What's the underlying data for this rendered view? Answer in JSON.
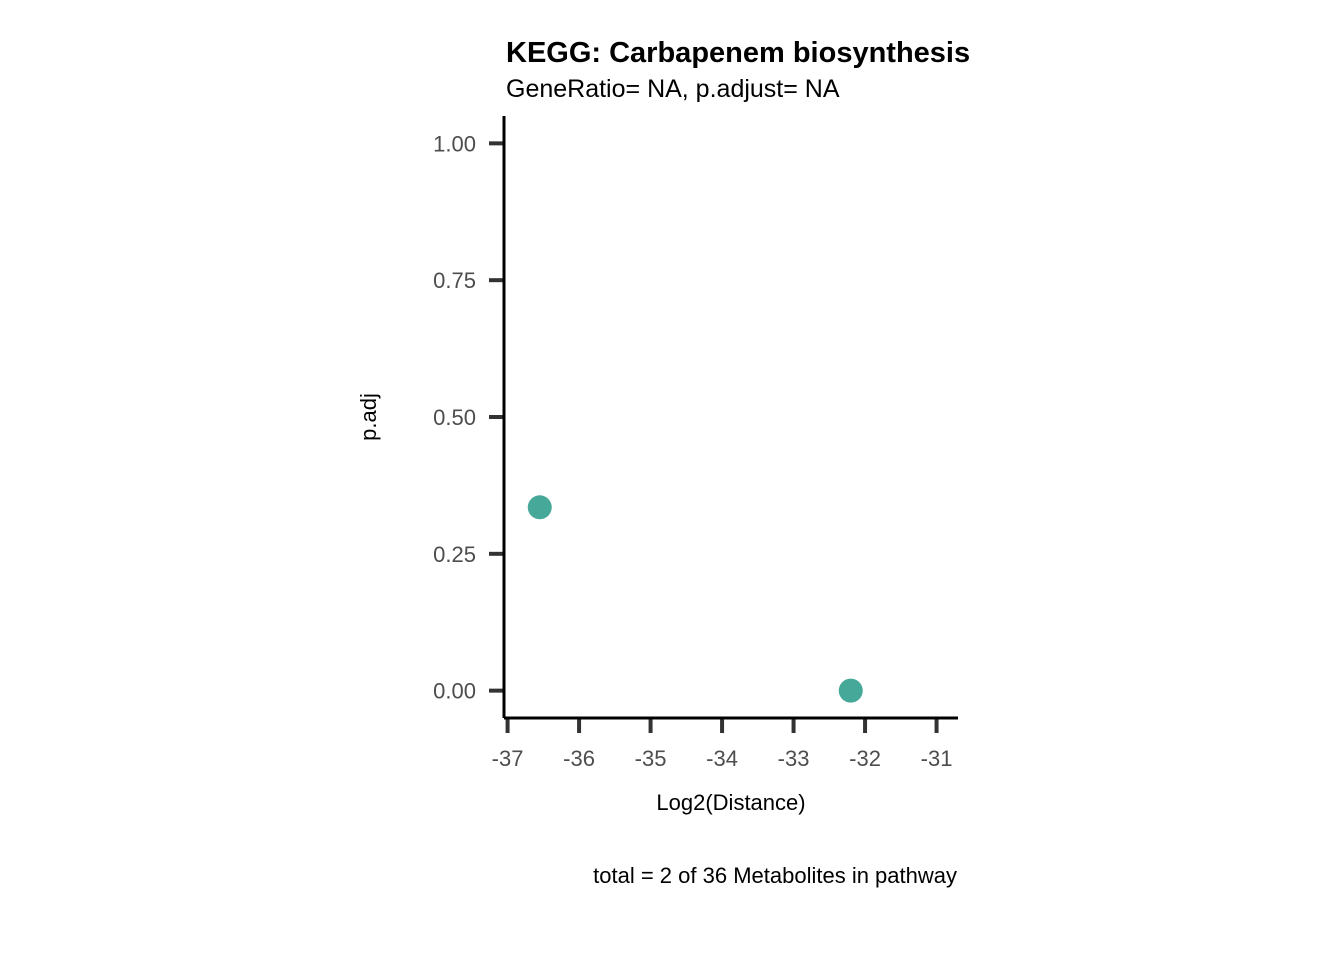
{
  "chart_data": {
    "type": "scatter",
    "title": "KEGG: Carbapenem biosynthesis",
    "subtitle": "GeneRatio= NA, p.adjust= NA",
    "xlabel": "Log2(Distance)",
    "ylabel": "p.adj",
    "caption": "total = 2 of 36 Metabolites in pathway",
    "xlim": [
      -37.05,
      -30.7
    ],
    "ylim": [
      -0.05,
      1.05
    ],
    "x_ticks": [
      -37,
      -36,
      -35,
      -34,
      -33,
      -32,
      -31
    ],
    "x_tick_labels": [
      "-37",
      "-36",
      "-35",
      "-34",
      "-33",
      "-32",
      "-31"
    ],
    "y_ticks": [
      0,
      0.25,
      0.5,
      0.75,
      1.0
    ],
    "y_tick_labels": [
      "0.00",
      "0.25",
      "0.50",
      "0.75",
      "1.00"
    ],
    "grid": false,
    "legend": "none",
    "point_color": "#45a899",
    "points": [
      {
        "x": -36.55,
        "y": 0.335
      },
      {
        "x": -32.2,
        "y": 0.0
      }
    ]
  }
}
